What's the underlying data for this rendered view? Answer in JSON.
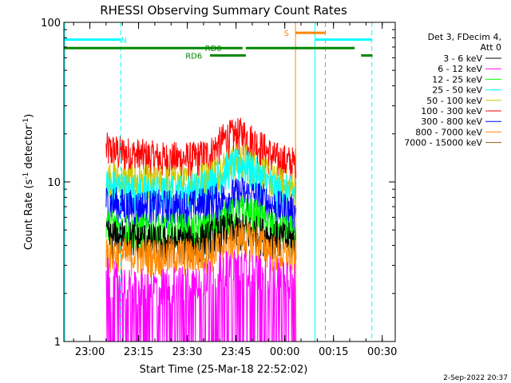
{
  "chart_data": {
    "type": "line",
    "title": "RHESSI Observing Summary Count Rates",
    "xlabel": "Start Time (25-Mar-18 22:52:02)",
    "ylabel_parts": [
      "Count Rate (s",
      "-1",
      " detector",
      "-1",
      ")"
    ],
    "y_scale": "log",
    "ylim": [
      1,
      100
    ],
    "xlim_minutes": [
      0,
      102
    ],
    "y_ticks": [
      {
        "value": 1,
        "label": "1"
      },
      {
        "value": 10,
        "label": "10"
      },
      {
        "value": 100,
        "label": "100"
      }
    ],
    "x_ticks": [
      {
        "minute": 8,
        "label": "23:00"
      },
      {
        "minute": 23,
        "label": "23:15"
      },
      {
        "minute": 38,
        "label": "23:30"
      },
      {
        "minute": 53,
        "label": "23:45"
      },
      {
        "minute": 68,
        "label": "00:00"
      },
      {
        "minute": 83,
        "label": "00:15"
      },
      {
        "minute": 98,
        "label": "00:30"
      }
    ],
    "legend": {
      "position": "right",
      "header": [
        "Det 3, FDecim 4,",
        "Att 0"
      ],
      "entries": [
        {
          "label": "3 - 6 keV",
          "color": "#000000"
        },
        {
          "label": "6 - 12 keV",
          "color": "#ff00ff"
        },
        {
          "label": "12 - 25 keV",
          "color": "#00ff00"
        },
        {
          "label": "25 - 50 keV",
          "color": "#00ffff"
        },
        {
          "label": "50 - 100 keV",
          "color": "#cccc00"
        },
        {
          "label": "100 - 300 keV",
          "color": "#ff0000"
        },
        {
          "label": "300 - 800 keV",
          "color": "#0000ff"
        },
        {
          "label": "800 - 7000 keV",
          "color": "#ff8800"
        },
        {
          "label": "7000 - 15000 keV",
          "color": "#886600"
        }
      ]
    },
    "data_window_minutes": [
      13,
      71.5
    ],
    "series": [
      {
        "name": "100 - 300 keV",
        "color": "#ff0000",
        "x": [
          13,
          20,
          30,
          40,
          45,
          50,
          55,
          60,
          65,
          71
        ],
        "y": [
          16,
          15,
          14,
          14,
          15,
          19,
          20,
          17,
          14,
          13
        ]
      },
      {
        "name": "50 - 100 keV",
        "color": "#cccc00",
        "x": [
          13,
          20,
          30,
          40,
          45,
          50,
          55,
          60,
          65,
          71
        ],
        "y": [
          11,
          10,
          10,
          10,
          11,
          13,
          14,
          12,
          10,
          9
        ]
      },
      {
        "name": "25 - 50 keV",
        "color": "#00ffff",
        "x": [
          13,
          20,
          30,
          40,
          45,
          50,
          55,
          60,
          65,
          71
        ],
        "y": [
          9.5,
          9,
          8.5,
          9,
          10,
          12,
          13,
          11,
          9,
          8.5
        ]
      },
      {
        "name": "300 - 800 keV",
        "color": "#0000ff",
        "x": [
          13,
          20,
          30,
          40,
          45,
          50,
          55,
          60,
          65,
          71
        ],
        "y": [
          7.5,
          7,
          7,
          7,
          7.5,
          8,
          8.5,
          8,
          7,
          6.5
        ]
      },
      {
        "name": "12 - 25 keV",
        "color": "#00ff00",
        "x": [
          13,
          20,
          30,
          40,
          45,
          50,
          55,
          60,
          65,
          71
        ],
        "y": [
          5.5,
          5,
          5,
          5,
          5,
          6,
          6.5,
          6,
          5,
          4.8
        ]
      },
      {
        "name": "3 - 6 keV",
        "color": "#000000",
        "x": [
          13,
          20,
          30,
          40,
          45,
          50,
          55,
          60,
          65,
          71
        ],
        "y": [
          4.5,
          4.5,
          4.2,
          4.2,
          4.5,
          5,
          5,
          4.8,
          4.5,
          4.3
        ]
      },
      {
        "name": "800 - 7000 keV",
        "color": "#ff8800",
        "x": [
          13,
          20,
          30,
          40,
          45,
          50,
          55,
          60,
          65,
          71
        ],
        "y": [
          3.6,
          3.5,
          3.5,
          3.5,
          3.6,
          4.2,
          4.5,
          4.2,
          3.6,
          3.4
        ]
      },
      {
        "name": "6 - 12 keV",
        "color": "#ff00ff",
        "x": [
          13,
          20,
          30,
          40,
          45,
          50,
          55,
          60,
          65,
          71
        ],
        "y": [
          2.6,
          2.2,
          2.2,
          2.4,
          2.6,
          2.9,
          3,
          2.8,
          2.6,
          2.4
        ]
      }
    ],
    "annotations": {
      "vertical_lines": [
        {
          "minute": 0.3,
          "color": "#00ffff",
          "style": "solid"
        },
        {
          "minute": 17.5,
          "color": "#00ffff",
          "style": "dashed"
        },
        {
          "minute": 71.3,
          "color": "#ff8800",
          "style": "solid"
        },
        {
          "minute": 77.3,
          "color": "#00ffff",
          "style": "solid"
        },
        {
          "minute": 80.5,
          "color": "#ff8800",
          "style": "dashed"
        },
        {
          "minute": 94.8,
          "color": "#00ffff",
          "style": "dashed"
        }
      ],
      "bars": [
        {
          "color": "#00ffff",
          "x0": 0,
          "x1": 17.5,
          "y": 78,
          "label": "N",
          "label_minute": 18.5
        },
        {
          "color": "#00ffff",
          "x0": 77.3,
          "x1": 94.8,
          "y": 78,
          "label": "",
          "label_minute": 0
        },
        {
          "color": "#ff8800",
          "x0": 71.3,
          "x1": 80.5,
          "y": 86,
          "label": "S",
          "label_minute": 68.5
        },
        {
          "color": "#008800",
          "x0": 0,
          "x1": 55,
          "y": 69,
          "label": "RD0",
          "label_minute": 46
        },
        {
          "color": "#008800",
          "x0": 56,
          "x1": 89.5,
          "y": 69,
          "label": "",
          "label_minute": 0
        },
        {
          "color": "#008800",
          "x0": 91.5,
          "x1": 95,
          "y": 62,
          "label": "",
          "label_minute": 0
        },
        {
          "color": "#008800",
          "x0": 45,
          "x1": 56,
          "y": 62,
          "label": "RD6",
          "label_minute": 40
        }
      ]
    }
  },
  "footer": {
    "date": "2-Sep-2022 20:37"
  }
}
